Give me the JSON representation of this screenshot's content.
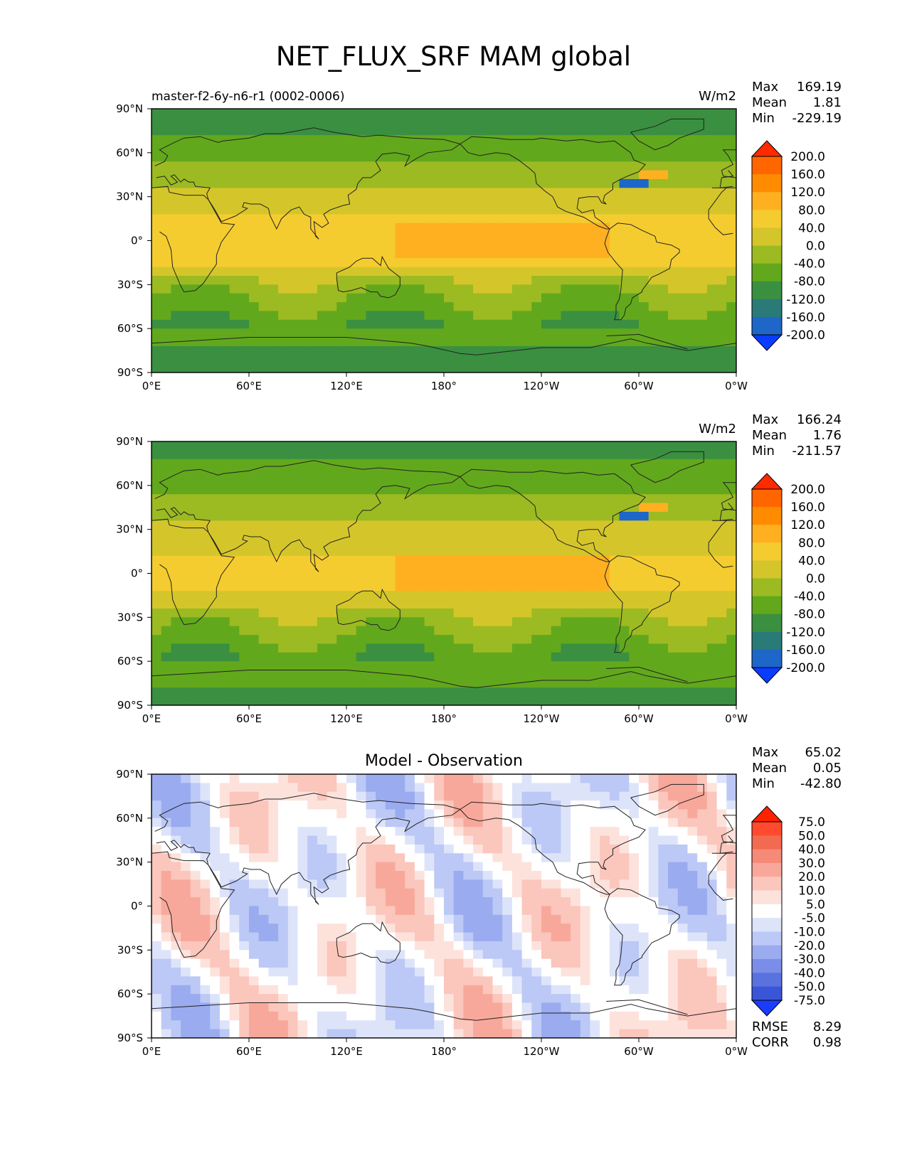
{
  "title": "NET_FLUX_SRF MAM global",
  "lat_ticks": [
    "90°N",
    "60°N",
    "30°N",
    "0°",
    "30°S",
    "60°S",
    "90°S"
  ],
  "lon_ticks": [
    "0°E",
    "60°E",
    "120°E",
    "180°",
    "120°W",
    "60°W",
    "0°W"
  ],
  "chart_data": [
    {
      "type": "heatmap",
      "panel": "test",
      "subtitle_left": "master-f2-6y-n6-r1 (0002-0006)",
      "units": "W/m2",
      "stats": {
        "max": "169.19",
        "mean": "1.81",
        "min": "-229.19"
      },
      "stat_labels": {
        "max": "Max",
        "mean": "Mean",
        "min": "Min"
      },
      "colorbar_levels": [
        "200.0",
        "160.0",
        "120.0",
        "80.0",
        "40.0",
        "0.0",
        "-40.0",
        "-80.0",
        "-120.0",
        "-160.0",
        "-200.0"
      ],
      "colorbar_colors": [
        "#ff2a00",
        "#ff6600",
        "#ff8c00",
        "#ffb020",
        "#f5cc30",
        "#d4c62a",
        "#9cba22",
        "#62a81c",
        "#3a9040",
        "#2a7a78",
        "#1e66c8",
        "#0a3cff"
      ],
      "x_range": [
        0,
        360
      ],
      "y_range": [
        -90,
        90
      ]
    },
    {
      "type": "heatmap",
      "panel": "reference",
      "subtitle_left": "",
      "units": "W/m2",
      "stats": {
        "max": "166.24",
        "mean": "1.76",
        "min": "-211.57"
      },
      "stat_labels": {
        "max": "Max",
        "mean": "Mean",
        "min": "Min"
      },
      "colorbar_levels": [
        "200.0",
        "160.0",
        "120.0",
        "80.0",
        "40.0",
        "0.0",
        "-40.0",
        "-80.0",
        "-120.0",
        "-160.0",
        "-200.0"
      ],
      "colorbar_colors": [
        "#ff2a00",
        "#ff6600",
        "#ff8c00",
        "#ffb020",
        "#f5cc30",
        "#d4c62a",
        "#9cba22",
        "#62a81c",
        "#3a9040",
        "#2a7a78",
        "#1e66c8",
        "#0a3cff"
      ],
      "x_range": [
        0,
        360
      ],
      "y_range": [
        -90,
        90
      ]
    },
    {
      "type": "heatmap",
      "panel": "difference",
      "subtitle_center": "Model - Observation",
      "units": "",
      "stats": {
        "max": "65.02",
        "mean": "0.05",
        "min": "-42.80"
      },
      "stat_labels": {
        "max": "Max",
        "mean": "Mean",
        "min": "Min"
      },
      "colorbar_levels": [
        "75.0",
        "50.0",
        "40.0",
        "30.0",
        "20.0",
        "10.0",
        "5.0",
        "-5.0",
        "-10.0",
        "-20.0",
        "-30.0",
        "-40.0",
        "-50.0",
        "-75.0"
      ],
      "colorbar_colors": [
        "#ff2200",
        "#ff4a2e",
        "#f26a50",
        "#f58a78",
        "#f8a89a",
        "#fbc6bc",
        "#fde2dc",
        "#ffffff",
        "#dde4fa",
        "#bcc8f5",
        "#9aabf0",
        "#7a8ee8",
        "#5a72e0",
        "#3a56d8",
        "#1a3cff"
      ],
      "error": {
        "rmse_label": "RMSE",
        "rmse": "8.29",
        "corr_label": "CORR",
        "corr": "0.98"
      },
      "x_range": [
        0,
        360
      ],
      "y_range": [
        -90,
        90
      ]
    }
  ]
}
